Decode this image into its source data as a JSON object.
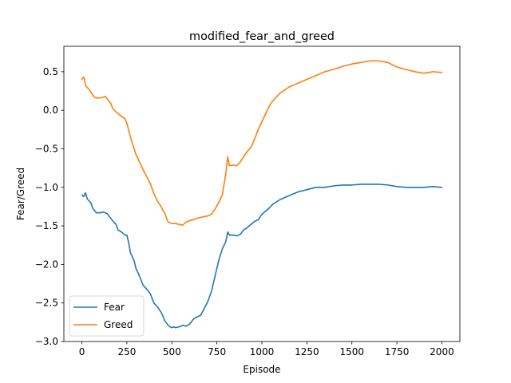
{
  "chart_data": {
    "type": "line",
    "title": "modified_fear_and_greed",
    "xlabel": "Episode",
    "ylabel": "Fear/Greed",
    "xlim": [
      -100,
      2100
    ],
    "ylim": [
      -3.0,
      0.83
    ],
    "xticks": [
      0,
      250,
      500,
      750,
      1000,
      1250,
      1500,
      1750,
      2000
    ],
    "yticks": [
      -3.0,
      -2.5,
      -2.0,
      -1.5,
      -1.0,
      -0.5,
      0.0,
      0.5
    ],
    "ytick_labels": [
      "−3.0",
      "−2.5",
      "−2.0",
      "−1.5",
      "−1.0",
      "−0.5",
      "0.0",
      "0.5"
    ],
    "grid": false,
    "legend_position": "lower-left",
    "series": [
      {
        "name": "Fear",
        "color": "#1f77b4",
        "x": [
          0,
          10,
          20,
          30,
          50,
          60,
          70,
          80,
          90,
          100,
          120,
          140,
          160,
          180,
          190,
          200,
          220,
          240,
          250,
          260,
          270,
          290,
          300,
          320,
          340,
          360,
          380,
          400,
          420,
          440,
          450,
          460,
          470,
          480,
          490,
          500,
          510,
          520,
          540,
          560,
          580,
          600,
          620,
          640,
          660,
          680,
          700,
          720,
          740,
          760,
          780,
          800,
          810,
          820,
          840,
          860,
          880,
          900,
          920,
          940,
          960,
          980,
          1000,
          1020,
          1040,
          1060,
          1080,
          1100,
          1150,
          1200,
          1250,
          1300,
          1350,
          1400,
          1450,
          1500,
          1550,
          1600,
          1650,
          1700,
          1750,
          1800,
          1850,
          1900,
          1950,
          2000
        ],
        "values": [
          -1.1,
          -1.12,
          -1.07,
          -1.15,
          -1.2,
          -1.27,
          -1.3,
          -1.33,
          -1.33,
          -1.33,
          -1.32,
          -1.34,
          -1.4,
          -1.46,
          -1.48,
          -1.55,
          -1.58,
          -1.62,
          -1.62,
          -1.72,
          -1.85,
          -1.95,
          -2.05,
          -2.15,
          -2.27,
          -2.32,
          -2.38,
          -2.5,
          -2.55,
          -2.62,
          -2.67,
          -2.73,
          -2.76,
          -2.79,
          -2.81,
          -2.82,
          -2.81,
          -2.82,
          -2.81,
          -2.79,
          -2.8,
          -2.77,
          -2.71,
          -2.68,
          -2.66,
          -2.57,
          -2.48,
          -2.35,
          -2.15,
          -1.95,
          -1.8,
          -1.7,
          -1.58,
          -1.62,
          -1.62,
          -1.63,
          -1.61,
          -1.55,
          -1.52,
          -1.48,
          -1.44,
          -1.42,
          -1.35,
          -1.31,
          -1.27,
          -1.22,
          -1.19,
          -1.16,
          -1.11,
          -1.06,
          -1.03,
          -1.0,
          -1.0,
          -0.98,
          -0.97,
          -0.97,
          -0.96,
          -0.96,
          -0.96,
          -0.97,
          -0.99,
          -1.0,
          -1.0,
          -1.0,
          -0.99,
          -1.0
        ]
      },
      {
        "name": "Greed",
        "color": "#ff7f0e",
        "x": [
          0,
          10,
          15,
          20,
          40,
          60,
          70,
          80,
          100,
          120,
          130,
          140,
          160,
          170,
          180,
          200,
          220,
          240,
          250,
          270,
          290,
          300,
          320,
          340,
          360,
          380,
          400,
          420,
          440,
          450,
          460,
          470,
          480,
          500,
          520,
          540,
          560,
          580,
          600,
          620,
          640,
          660,
          680,
          700,
          720,
          740,
          760,
          780,
          800,
          810,
          820,
          840,
          860,
          880,
          900,
          920,
          940,
          960,
          980,
          1000,
          1020,
          1040,
          1060,
          1080,
          1100,
          1150,
          1200,
          1250,
          1300,
          1350,
          1400,
          1450,
          1500,
          1550,
          1600,
          1650,
          1700,
          1750,
          1800,
          1850,
          1900,
          1950,
          2000
        ],
        "values": [
          0.4,
          0.43,
          0.4,
          0.32,
          0.27,
          0.2,
          0.17,
          0.16,
          0.16,
          0.17,
          0.18,
          0.15,
          0.09,
          0.03,
          0.0,
          -0.04,
          -0.08,
          -0.11,
          -0.17,
          -0.35,
          -0.5,
          -0.57,
          -0.67,
          -0.77,
          -0.86,
          -0.95,
          -1.08,
          -1.18,
          -1.25,
          -1.3,
          -1.33,
          -1.4,
          -1.45,
          -1.47,
          -1.47,
          -1.48,
          -1.49,
          -1.45,
          -1.43,
          -1.42,
          -1.4,
          -1.39,
          -1.38,
          -1.37,
          -1.35,
          -1.28,
          -1.2,
          -1.1,
          -0.82,
          -0.6,
          -0.72,
          -0.71,
          -0.72,
          -0.67,
          -0.6,
          -0.53,
          -0.48,
          -0.37,
          -0.25,
          -0.15,
          -0.05,
          0.05,
          0.12,
          0.17,
          0.22,
          0.3,
          0.35,
          0.4,
          0.45,
          0.5,
          0.53,
          0.57,
          0.6,
          0.62,
          0.64,
          0.64,
          0.62,
          0.56,
          0.53,
          0.5,
          0.48,
          0.5,
          0.49
        ]
      }
    ]
  }
}
